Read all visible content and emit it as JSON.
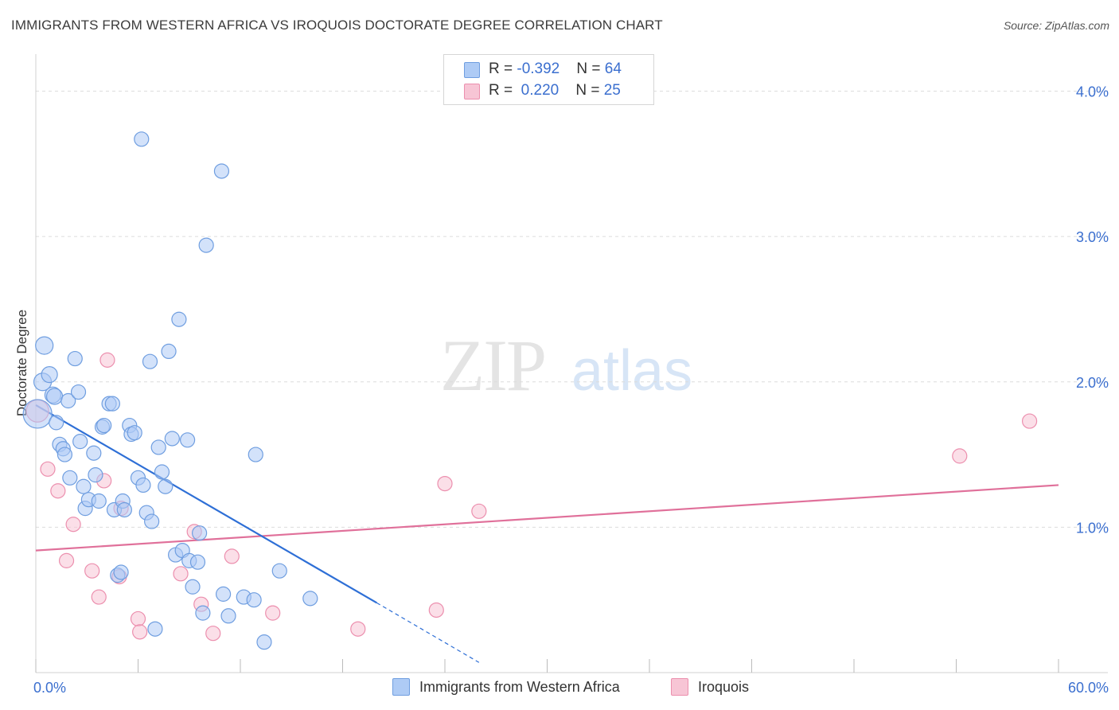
{
  "header": {
    "title": "IMMIGRANTS FROM WESTERN AFRICA VS IROQUOIS DOCTORATE DEGREE CORRELATION CHART",
    "source": "Source: ZipAtlas.com"
  },
  "watermark": {
    "zip": "ZIP",
    "atlas": "atlas"
  },
  "legend_top": {
    "rows": [
      {
        "r_label": "R = ",
        "r_value": "-0.392",
        "n_label": "N = ",
        "n_value": "64",
        "color": "#aecbf5"
      },
      {
        "r_label": "R = ",
        "r_value": "0.220",
        "n_label": "N = ",
        "n_value": "25",
        "color": "#f7b8cb"
      }
    ]
  },
  "colors": {
    "blue_fill": "#aecbf5",
    "blue_stroke": "#6f9ee0",
    "blue_line": "#2e6fd6",
    "pink_fill": "#f7c5d5",
    "pink_stroke": "#ec8fae",
    "pink_line": "#e0709a",
    "tick_text": "#3b6fcf",
    "grid": "#dcdcdc"
  },
  "chart_data": {
    "type": "scatter",
    "title": "IMMIGRANTS FROM WESTERN AFRICA VS IROQUOIS DOCTORATE DEGREE CORRELATION CHART",
    "xlabel": "",
    "ylabel": "Doctorate Degree",
    "xlim": [
      0,
      60
    ],
    "ylim": [
      0,
      4.2
    ],
    "x_tick_labels": [
      "0.0%",
      "60.0%"
    ],
    "y_ticks": [
      1,
      2,
      3,
      4
    ],
    "y_tick_labels": [
      "1.0%",
      "2.0%",
      "3.0%",
      "4.0%"
    ],
    "grid": true,
    "legend_position": "bottom",
    "series": [
      {
        "name": "Immigrants from Western Africa",
        "color": "#aecbf5",
        "r": -0.392,
        "n": 64,
        "trend": {
          "x": [
            0,
            20
          ],
          "y": [
            1.84,
            0.48
          ],
          "dashed_extension_x": [
            20,
            26
          ],
          "dashed_extension_y": [
            0.48,
            0.07
          ]
        },
        "points": [
          [
            0.1,
            1.78,
            18
          ],
          [
            0.4,
            2.0,
            11
          ],
          [
            0.5,
            2.25,
            11
          ],
          [
            0.8,
            2.05,
            10
          ],
          [
            1.0,
            1.91,
            10
          ],
          [
            1.1,
            1.9,
            10
          ],
          [
            1.2,
            1.72,
            9
          ],
          [
            1.4,
            1.57,
            9
          ],
          [
            1.6,
            1.54,
            9
          ],
          [
            1.7,
            1.5,
            9
          ],
          [
            1.9,
            1.87,
            9
          ],
          [
            2.0,
            1.34,
            9
          ],
          [
            2.3,
            2.16,
            9
          ],
          [
            2.5,
            1.93,
            9
          ],
          [
            2.6,
            1.59,
            9
          ],
          [
            2.8,
            1.28,
            9
          ],
          [
            2.9,
            1.13,
            9
          ],
          [
            3.1,
            1.19,
            9
          ],
          [
            3.4,
            1.51,
            9
          ],
          [
            3.5,
            1.36,
            9
          ],
          [
            3.7,
            1.18,
            9
          ],
          [
            3.9,
            1.69,
            9
          ],
          [
            4.0,
            1.7,
            9
          ],
          [
            4.3,
            1.85,
            9
          ],
          [
            4.5,
            1.85,
            9
          ],
          [
            4.6,
            1.12,
            9
          ],
          [
            4.8,
            0.67,
            9
          ],
          [
            5.0,
            0.69,
            9
          ],
          [
            5.1,
            1.18,
            9
          ],
          [
            5.2,
            1.12,
            9
          ],
          [
            5.5,
            1.7,
            9
          ],
          [
            5.6,
            1.64,
            9
          ],
          [
            5.8,
            1.65,
            9
          ],
          [
            6.0,
            1.34,
            9
          ],
          [
            6.2,
            3.67,
            9
          ],
          [
            6.3,
            1.29,
            9
          ],
          [
            6.5,
            1.1,
            9
          ],
          [
            6.7,
            2.14,
            9
          ],
          [
            6.8,
            1.04,
            9
          ],
          [
            7.0,
            0.3,
            9
          ],
          [
            7.2,
            1.55,
            9
          ],
          [
            7.4,
            1.38,
            9
          ],
          [
            7.6,
            1.28,
            9
          ],
          [
            7.8,
            2.21,
            9
          ],
          [
            8.0,
            1.61,
            9
          ],
          [
            8.2,
            0.81,
            9
          ],
          [
            8.4,
            2.43,
            9
          ],
          [
            8.6,
            0.84,
            9
          ],
          [
            8.9,
            1.6,
            9
          ],
          [
            9.0,
            0.77,
            9
          ],
          [
            9.2,
            0.59,
            9
          ],
          [
            9.5,
            0.76,
            9
          ],
          [
            9.6,
            0.96,
            9
          ],
          [
            9.8,
            0.41,
            9
          ],
          [
            10.0,
            2.94,
            9
          ],
          [
            10.9,
            3.45,
            9
          ],
          [
            11.0,
            0.54,
            9
          ],
          [
            11.3,
            0.39,
            9
          ],
          [
            12.2,
            0.52,
            9
          ],
          [
            12.8,
            0.5,
            9
          ],
          [
            12.9,
            1.5,
            9
          ],
          [
            13.4,
            0.21,
            9
          ],
          [
            14.3,
            0.7,
            9
          ],
          [
            16.1,
            0.51,
            9
          ]
        ]
      },
      {
        "name": "Iroquois",
        "color": "#f7b8cb",
        "r": 0.22,
        "n": 25,
        "trend": {
          "x": [
            0,
            60
          ],
          "y": [
            0.84,
            1.29
          ]
        },
        "points": [
          [
            0.1,
            1.8,
            14
          ],
          [
            0.7,
            1.4,
            9
          ],
          [
            1.3,
            1.25,
            9
          ],
          [
            1.8,
            0.77,
            9
          ],
          [
            2.2,
            1.02,
            9
          ],
          [
            3.3,
            0.7,
            9
          ],
          [
            3.7,
            0.52,
            9
          ],
          [
            4.0,
            1.32,
            9
          ],
          [
            4.2,
            2.15,
            9
          ],
          [
            4.9,
            0.66,
            9
          ],
          [
            5.0,
            1.13,
            9
          ],
          [
            6.0,
            0.37,
            9
          ],
          [
            6.1,
            0.28,
            9
          ],
          [
            8.5,
            0.68,
            9
          ],
          [
            9.3,
            0.97,
            9
          ],
          [
            9.7,
            0.47,
            9
          ],
          [
            10.4,
            0.27,
            9
          ],
          [
            11.5,
            0.8,
            9
          ],
          [
            13.9,
            0.41,
            9
          ],
          [
            18.9,
            0.3,
            9
          ],
          [
            23.5,
            0.43,
            9
          ],
          [
            24.0,
            1.3,
            9
          ],
          [
            26.0,
            1.11,
            9
          ],
          [
            54.2,
            1.49,
            9
          ],
          [
            58.3,
            1.73,
            9
          ]
        ]
      }
    ]
  }
}
